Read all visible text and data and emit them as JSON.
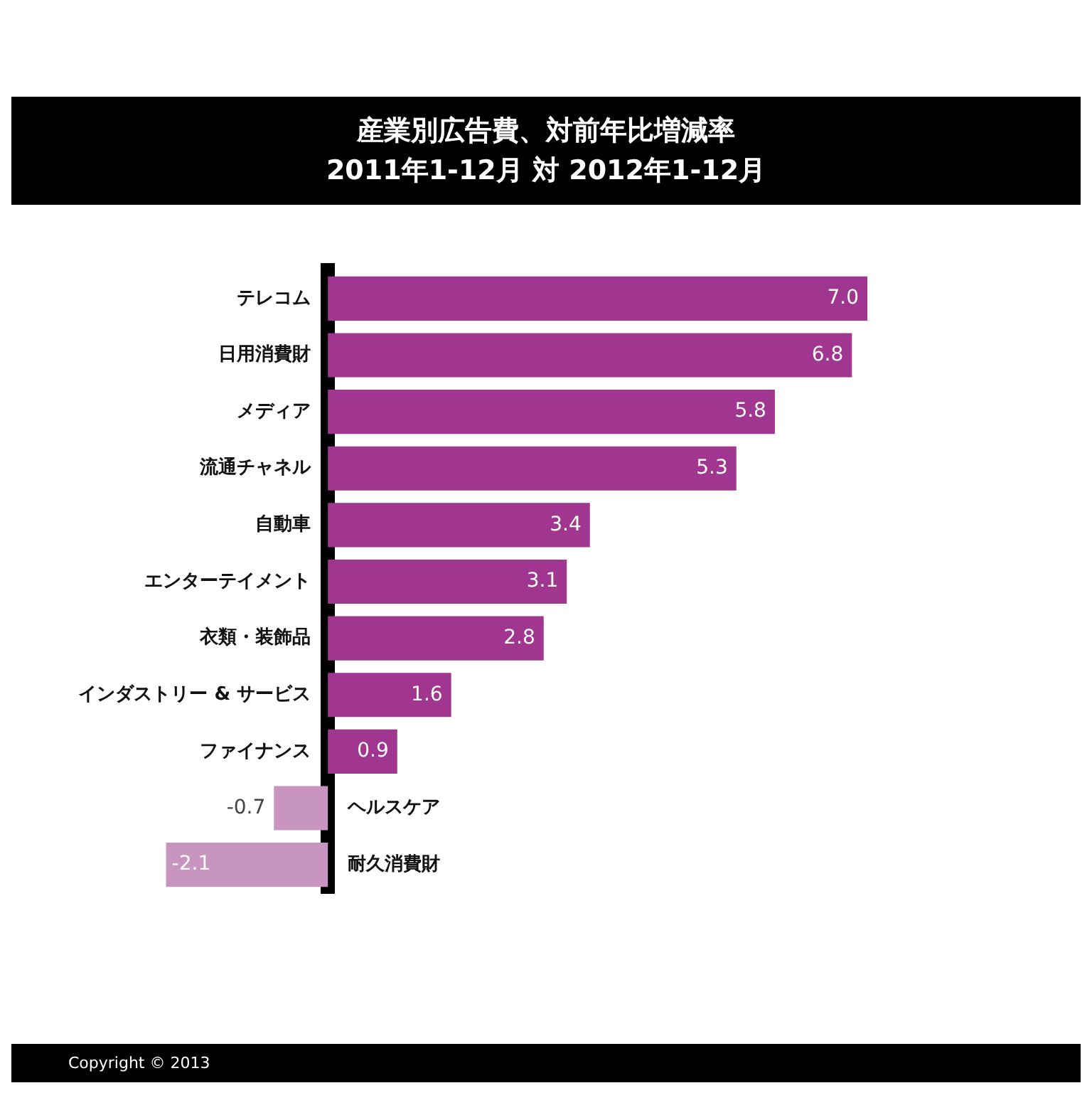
{
  "chart_data": {
    "type": "bar",
    "orientation": "horizontal",
    "title": "産業別広告費、対前年比増減率",
    "subtitle": "2011年1-12月 対 2012年1-12月",
    "categories": [
      "テレコム",
      "日用消費財",
      "メディア",
      "流通チャネル",
      "自動車",
      "エンターテイメント",
      "衣類・装飾品",
      "インダストリー & サービス",
      "ファイナンス",
      "ヘルスケア",
      "耐久消費財"
    ],
    "values": [
      7.0,
      6.8,
      5.8,
      5.3,
      3.4,
      3.1,
      2.8,
      1.6,
      0.9,
      -0.7,
      -2.1
    ],
    "value_labels": [
      "7.0",
      "6.8",
      "5.8",
      "5.3",
      "3.4",
      "3.1",
      "2.8",
      "1.6",
      "0.9",
      "-0.7",
      "-2.1"
    ],
    "colors": [
      "#a0368f",
      "#a0368f",
      "#a0368f",
      "#a0368f",
      "#a0368f",
      "#a0368f",
      "#a0368f",
      "#a0368f",
      "#a0368f",
      "#c894c0",
      "#c894c0"
    ],
    "tick_labels": "y",
    "grid": false,
    "legend": false,
    "annotations": [
      "Copyright © 2013"
    ]
  }
}
